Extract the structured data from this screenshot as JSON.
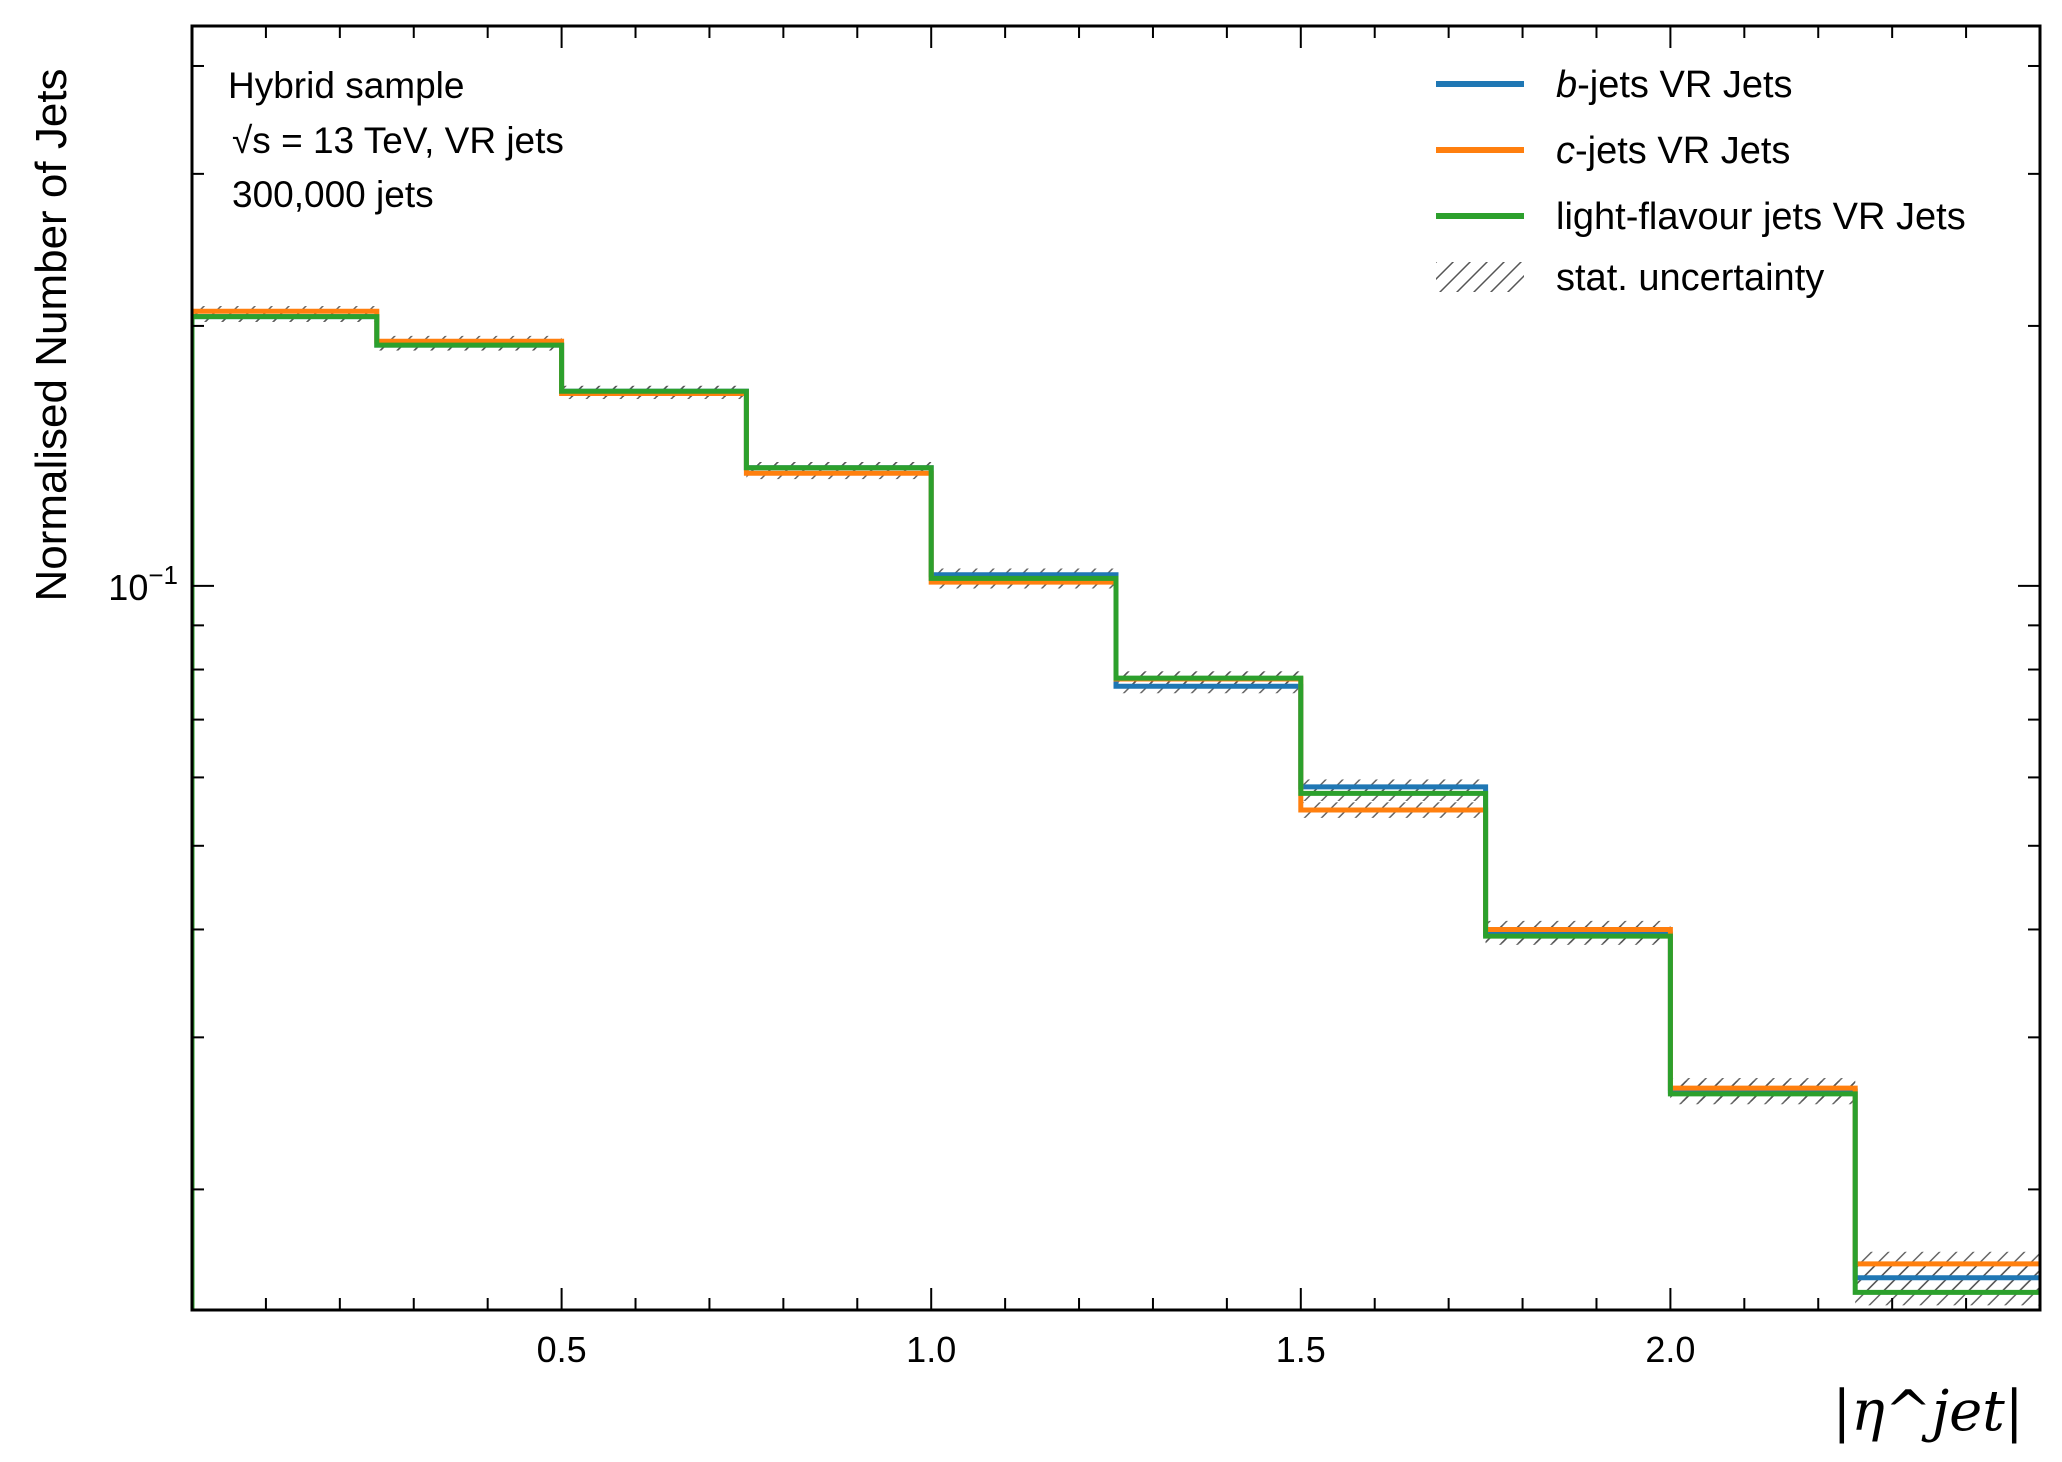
{
  "chart_data": {
    "type": "step-histogram",
    "xlabel": "|η^jet|",
    "ylabel": "Normalised Number of Jets",
    "yscale": "log",
    "xlim": [
      0.0,
      2.5
    ],
    "ylim": [
      0.0145,
      0.445
    ],
    "x_ticks": [
      0.5,
      1.0,
      1.5,
      2.0
    ],
    "x_tick_labels": [
      "0.5",
      "1.0",
      "1.5",
      "2.0"
    ],
    "y_major_tick": 0.1,
    "y_major_tick_label": "10−1",
    "y_minor_ticks": [
      0.02,
      0.03,
      0.04,
      0.05,
      0.06,
      0.07,
      0.08,
      0.09,
      0.2,
      0.3,
      0.4
    ],
    "bin_edges": [
      0.0,
      0.25,
      0.5,
      0.75,
      1.0,
      1.25,
      1.5,
      1.75,
      2.0,
      2.25,
      2.5
    ],
    "annotations": [
      "Hybrid sample",
      "√s = 13 TeV, VR jets",
      "300,000 jets"
    ],
    "legend_location": "upper right",
    "uncertainty_label": "stat. uncertainty",
    "series": [
      {
        "name": "b-jets VR Jets",
        "name_italic": "b",
        "name_rest": "-jets VR Jets",
        "color": "#1f77b4",
        "values": [
          0.205,
          0.19,
          0.168,
          0.137,
          0.103,
          0.0765,
          0.0585,
          0.0395,
          0.026,
          0.0158
        ],
        "errors": [
          0.0012,
          0.0012,
          0.0011,
          0.001,
          0.0009,
          0.0008,
          0.0007,
          0.0006,
          0.0005,
          0.0004
        ]
      },
      {
        "name": "c-jets VR Jets",
        "name_italic": "c",
        "name_rest": "-jets VR Jets",
        "color": "#ff7f0e",
        "values": [
          0.208,
          0.192,
          0.167,
          0.135,
          0.101,
          0.078,
          0.055,
          0.04,
          0.0262,
          0.0164
        ],
        "errors": [
          0.0012,
          0.0012,
          0.0011,
          0.001,
          0.0009,
          0.0008,
          0.0007,
          0.0006,
          0.0005,
          0.0004
        ]
      },
      {
        "name": "light-flavour jets VR Jets",
        "name_italic": "",
        "name_rest": "light-flavour jets VR Jets",
        "color": "#2ca02c",
        "values": [
          0.205,
          0.19,
          0.168,
          0.137,
          0.102,
          0.0782,
          0.0575,
          0.0393,
          0.0258,
          0.0152
        ],
        "errors": [
          0.0012,
          0.0012,
          0.0011,
          0.001,
          0.0009,
          0.0008,
          0.0007,
          0.0006,
          0.0005,
          0.0004
        ]
      }
    ]
  }
}
